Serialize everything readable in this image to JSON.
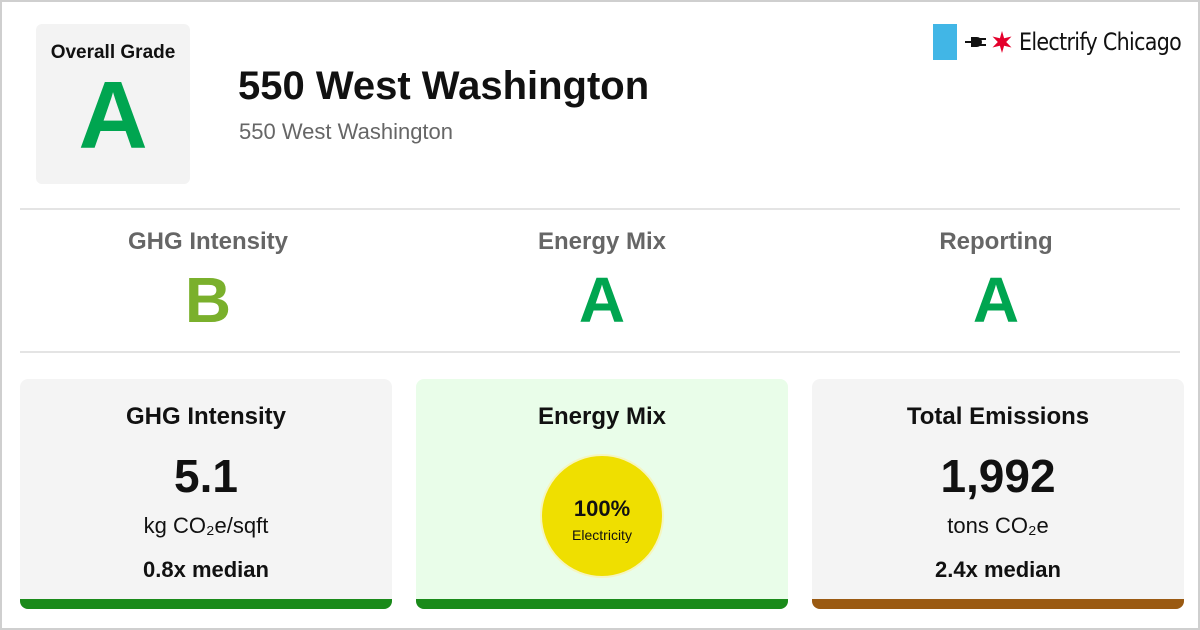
{
  "overall": {
    "label": "Overall Grade",
    "grade": "A"
  },
  "building": {
    "title": "550 West Washington",
    "address": "550 West Washington"
  },
  "brand": {
    "name": "Electrify Chicago",
    "flag_color": "#41b6e6",
    "star_color": "#e4002b",
    "icons": [
      "plug-icon",
      "star-icon"
    ]
  },
  "grades": [
    {
      "label": "GHG Intensity",
      "grade": "B",
      "color": "#7ab02c"
    },
    {
      "label": "Energy Mix",
      "grade": "A",
      "color": "#00a550"
    },
    {
      "label": "Reporting",
      "grade": "A",
      "color": "#00a550"
    }
  ],
  "cards": {
    "ghg": {
      "title": "GHG Intensity",
      "value": "5.1",
      "unit": "kg CO₂e/sqft",
      "median": "0.8x median",
      "bar_color": "#1a8a1a"
    },
    "energy_mix": {
      "title": "Energy Mix",
      "percent": "100%",
      "source": "Electricity",
      "bar_color": "#1a8a1a"
    },
    "emissions": {
      "title": "Total Emissions",
      "value": "1,992",
      "unit": "tons CO₂e",
      "median": "2.4x median",
      "bar_color": "#9a5a12"
    }
  },
  "colors": {
    "grade_a": "#00a550",
    "grade_b": "#7ab02c",
    "energy_circle": "#efdf00"
  }
}
